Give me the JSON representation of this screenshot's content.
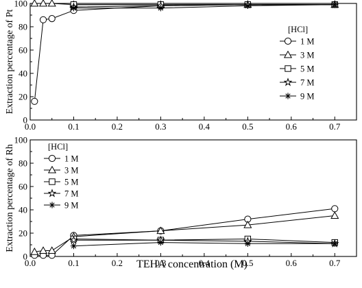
{
  "chart_data": [
    {
      "type": "line",
      "ylabel": "Extraction percentage of Pt",
      "xlabel": "",
      "xlim": [
        0,
        0.75
      ],
      "ylim": [
        0,
        100
      ],
      "xticks": [
        "0.0",
        "0.1",
        "0.2",
        "0.3",
        "0.4",
        "0.5",
        "0.6",
        "0.7"
      ],
      "yticks": [
        "0",
        "20",
        "40",
        "60",
        "80",
        "100"
      ],
      "legend_title": "[HCl]",
      "legend_position": "right",
      "series": [
        {
          "name": "1 M",
          "marker": "circle",
          "x": [
            0.01,
            0.03,
            0.05,
            0.1,
            0.3,
            0.5,
            0.7
          ],
          "y": [
            16,
            86,
            87,
            94,
            98,
            99,
            99
          ]
        },
        {
          "name": "3 M",
          "marker": "triangle",
          "x": [
            0.01,
            0.03,
            0.05,
            0.1,
            0.3,
            0.5,
            0.7
          ],
          "y": [
            100,
            100,
            100,
            99,
            99,
            99,
            99
          ]
        },
        {
          "name": "5 M",
          "marker": "square",
          "x": [
            0.1,
            0.3,
            0.5,
            0.7
          ],
          "y": [
            99,
            99,
            99,
            99
          ]
        },
        {
          "name": "7 M",
          "marker": "star",
          "x": [
            0.1,
            0.3,
            0.5,
            0.7
          ],
          "y": [
            97,
            98,
            99,
            99
          ]
        },
        {
          "name": "9 M",
          "marker": "asterisk",
          "x": [
            0.1,
            0.3,
            0.5,
            0.7
          ],
          "y": [
            96,
            96,
            98,
            99
          ]
        }
      ]
    },
    {
      "type": "line",
      "ylabel": "Extraction percentage of Rh",
      "xlabel": "TEHA concentration (M)",
      "xlim": [
        0,
        0.75
      ],
      "ylim": [
        0,
        100
      ],
      "xticks": [
        "0.0",
        "0.1",
        "0.2",
        "0.3",
        "0.4",
        "0.5",
        "0.6",
        "0.7"
      ],
      "yticks": [
        "0",
        "20",
        "40",
        "60",
        "80",
        "100"
      ],
      "legend_title": "[HCl]",
      "legend_position": "top-left",
      "series": [
        {
          "name": "1 M",
          "marker": "circle",
          "x": [
            0.01,
            0.03,
            0.05,
            0.1,
            0.3,
            0.5,
            0.7
          ],
          "y": [
            1,
            1,
            1,
            18,
            22,
            32,
            41
          ]
        },
        {
          "name": "3 M",
          "marker": "triangle",
          "x": [
            0.01,
            0.03,
            0.05,
            0.1,
            0.3,
            0.5,
            0.7
          ],
          "y": [
            4,
            5,
            5,
            17,
            22,
            27,
            35
          ]
        },
        {
          "name": "5 M",
          "marker": "square",
          "x": [
            0.1,
            0.3,
            0.5,
            0.7
          ],
          "y": [
            15,
            14,
            15,
            12
          ]
        },
        {
          "name": "7 M",
          "marker": "star",
          "x": [
            0.1,
            0.3,
            0.5,
            0.7
          ],
          "y": [
            14,
            14,
            13,
            11
          ]
        },
        {
          "name": "9 M",
          "marker": "asterisk",
          "x": [
            0.1,
            0.3,
            0.5,
            0.7
          ],
          "y": [
            9,
            12,
            11,
            11
          ]
        }
      ]
    }
  ]
}
